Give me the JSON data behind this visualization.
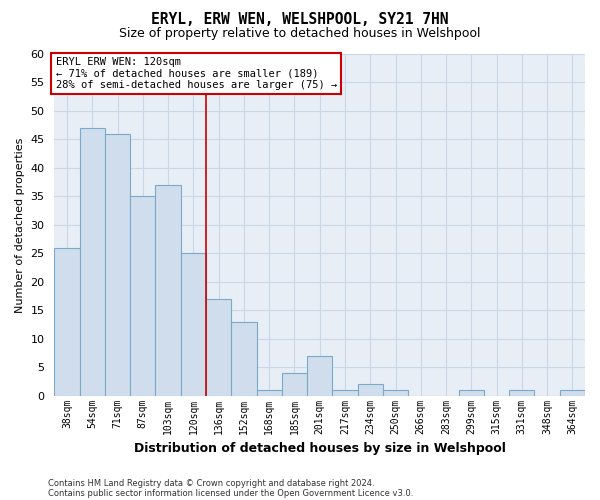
{
  "title": "ERYL, ERW WEN, WELSHPOOL, SY21 7HN",
  "subtitle": "Size of property relative to detached houses in Welshpool",
  "xlabel": "Distribution of detached houses by size in Welshpool",
  "ylabel": "Number of detached properties",
  "footnote1": "Contains HM Land Registry data © Crown copyright and database right 2024.",
  "footnote2": "Contains public sector information licensed under the Open Government Licence v3.0.",
  "bar_labels": [
    "38sqm",
    "54sqm",
    "71sqm",
    "87sqm",
    "103sqm",
    "120sqm",
    "136sqm",
    "152sqm",
    "168sqm",
    "185sqm",
    "201sqm",
    "217sqm",
    "234sqm",
    "250sqm",
    "266sqm",
    "283sqm",
    "299sqm",
    "315sqm",
    "331sqm",
    "348sqm",
    "364sqm"
  ],
  "bar_values": [
    26,
    47,
    46,
    35,
    37,
    25,
    17,
    13,
    1,
    4,
    7,
    1,
    2,
    1,
    0,
    0,
    1,
    0,
    1,
    0,
    1
  ],
  "bar_color": "#cfdded",
  "bar_edge_color": "#7aaac8",
  "highlight_index": 5,
  "highlight_line_color": "#cc0000",
  "ylim": [
    0,
    60
  ],
  "yticks": [
    0,
    5,
    10,
    15,
    20,
    25,
    30,
    35,
    40,
    45,
    50,
    55,
    60
  ],
  "annotation_title": "ERYL ERW WEN: 120sqm",
  "annotation_line1": "← 71% of detached houses are smaller (189)",
  "annotation_line2": "28% of semi-detached houses are larger (75) →",
  "annotation_box_color": "#ffffff",
  "annotation_box_edge": "#cc0000",
  "grid_color": "#c8d8e8",
  "plot_bg_color": "#e8eef5",
  "background_color": "#ffffff"
}
